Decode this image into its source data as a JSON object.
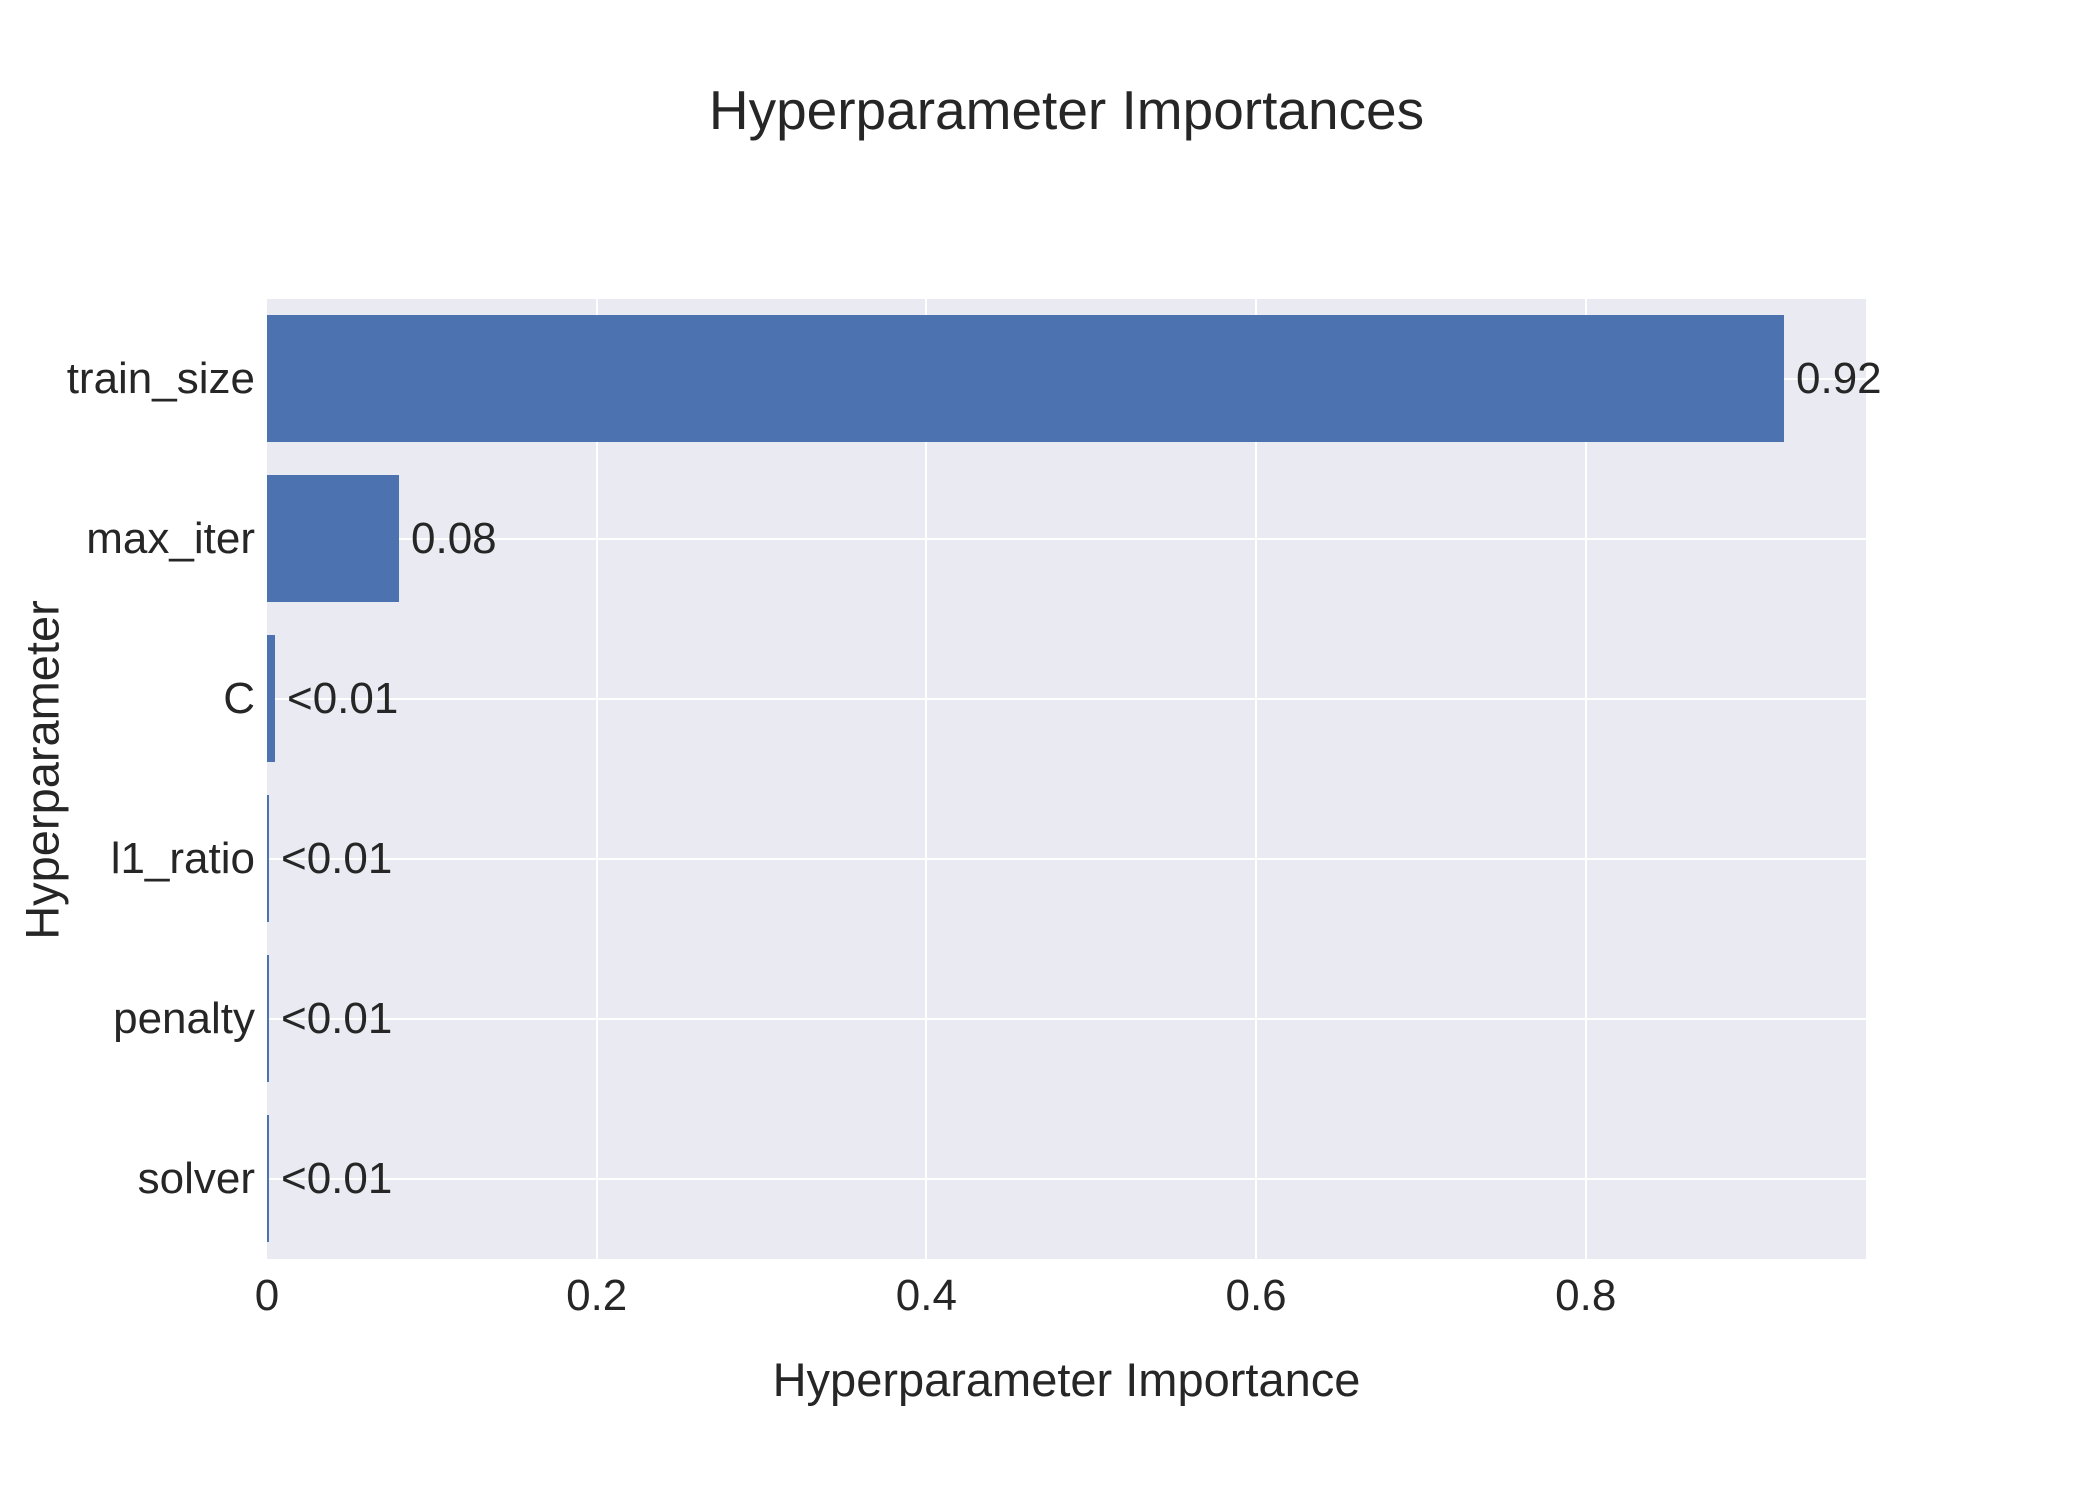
{
  "chart_data": {
    "type": "bar",
    "orientation": "horizontal",
    "title": "Hyperparameter Importances",
    "xlabel": "Hyperparameter Importance",
    "ylabel": "Hyperparameter",
    "categories": [
      "train_size",
      "max_iter",
      "C",
      "l1_ratio",
      "penalty",
      "solver"
    ],
    "values": [
      0.92,
      0.08,
      0.005,
      0.001,
      0.001,
      0.001
    ],
    "value_labels": [
      "0.92",
      "0.08",
      "<0.01",
      "<0.01",
      "<0.01",
      "<0.01"
    ],
    "x_ticks": [
      0,
      0.2,
      0.4,
      0.6,
      0.8
    ],
    "x_tick_labels": [
      "0",
      "0.2",
      "0.4",
      "0.6",
      "0.8"
    ],
    "xlim": [
      0,
      0.97
    ],
    "grid": true,
    "legend": null,
    "colors": {
      "bar": "#4c72b0",
      "plot_background": "#eaeaf2",
      "gridline": "#ffffff",
      "text": "#262626",
      "figure_background": "#ffffff"
    }
  }
}
